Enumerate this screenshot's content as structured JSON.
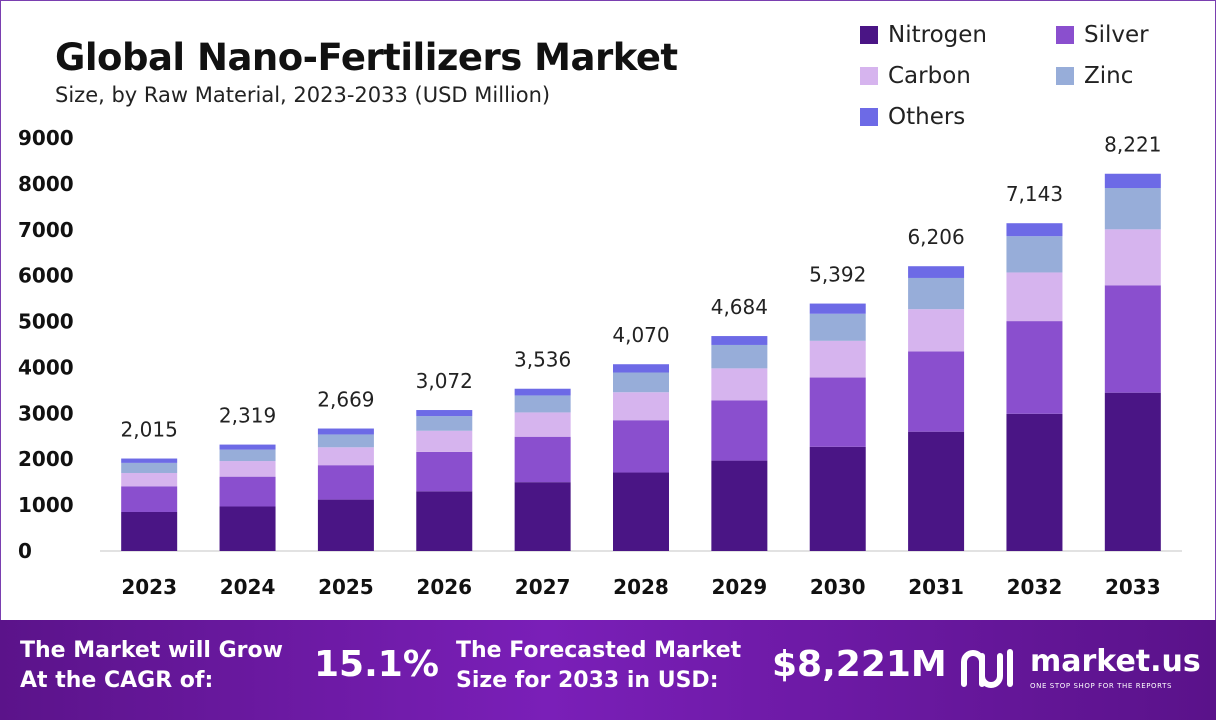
{
  "header": {
    "title": "Global Nano-Fertilizers Market",
    "subtitle": "Size, by Raw Material, 2023-2033 (USD Million)"
  },
  "chart_data": {
    "type": "bar",
    "stacked": true,
    "categories": [
      "2023",
      "2024",
      "2025",
      "2026",
      "2027",
      "2028",
      "2029",
      "2030",
      "2031",
      "2032",
      "2033"
    ],
    "totals": [
      "2,015",
      "2,319",
      "2,669",
      "3,072",
      "3,536",
      "4,070",
      "4,684",
      "5,392",
      "6,206",
      "7,143",
      "8,221"
    ],
    "series": [
      {
        "name": "Nitrogen",
        "color": "#4a1585",
        "values": [
          850,
          970,
          1120,
          1300,
          1500,
          1710,
          1970,
          2270,
          2600,
          2990,
          3450
        ]
      },
      {
        "name": "Silver",
        "color": "#8a4fce",
        "values": [
          560,
          650,
          750,
          860,
          990,
          1140,
          1310,
          1510,
          1750,
          2020,
          2340
        ]
      },
      {
        "name": "Carbon",
        "color": "#d6b4ee",
        "values": [
          290,
          340,
          390,
          460,
          530,
          610,
          700,
          800,
          920,
          1060,
          1220
        ]
      },
      {
        "name": "Zinc",
        "color": "#97add9",
        "values": [
          220,
          250,
          280,
          320,
          370,
          430,
          510,
          590,
          680,
          790,
          900
        ]
      },
      {
        "name": "Others",
        "color": "#6d6ae6",
        "values": [
          95,
          109,
          129,
          132,
          146,
          180,
          194,
          222,
          256,
          283,
          311
        ]
      }
    ],
    "ylim": [
      0,
      9000
    ],
    "yticks": [
      0,
      1000,
      2000,
      3000,
      4000,
      5000,
      6000,
      7000,
      8000,
      9000
    ],
    "xlabel": "",
    "ylabel": "",
    "grid": false,
    "legend_position": "top-right"
  },
  "footer": {
    "cagr_label_line1": "The Market will Grow",
    "cagr_label_line2": "At the CAGR of:",
    "cagr_value": "15.1%",
    "forecast_label_line1": "The Forecasted Market",
    "forecast_label_line2": "Size for 2033 in USD:",
    "forecast_value": "$8,221M",
    "brand_name": "market.us",
    "brand_tagline": "ONE STOP SHOP FOR THE REPORTS"
  }
}
